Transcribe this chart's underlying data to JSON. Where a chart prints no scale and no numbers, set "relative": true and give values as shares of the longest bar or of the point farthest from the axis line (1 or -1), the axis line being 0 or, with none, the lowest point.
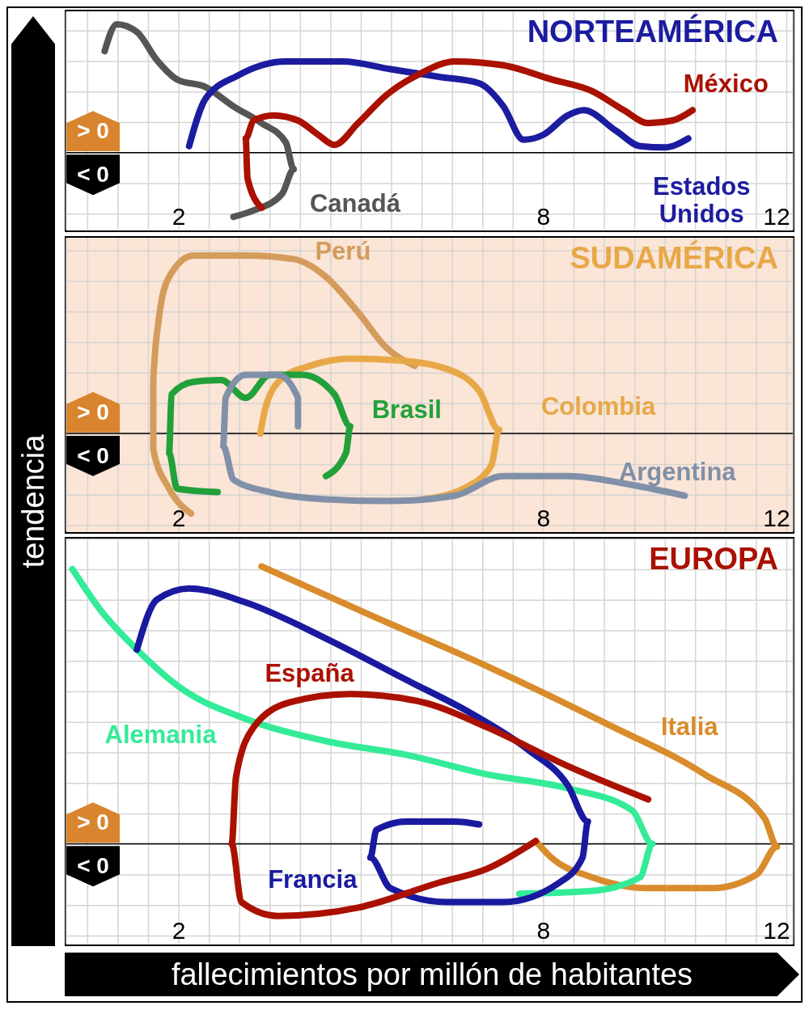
{
  "chart_data": [
    {
      "type": "line",
      "title": "NORTEAMÉRICA",
      "relative": true,
      "grid": true,
      "xlim": [
        0.15,
        12.1
      ],
      "xticks": [
        {
          "value": 0.5,
          "label": null
        },
        {
          "value": 1,
          "label": null
        },
        {
          "value": 1.5,
          "label": null
        },
        2,
        {
          "value": 2.5,
          "label": null
        },
        {
          "value": 3,
          "label": null
        },
        {
          "value": 3.5,
          "label": null
        },
        {
          "value": 4,
          "label": null
        },
        {
          "value": 4.5,
          "label": null
        },
        {
          "value": 5,
          "label": null
        },
        {
          "value": 5.5,
          "label": null
        },
        {
          "value": 6,
          "label": null
        },
        {
          "value": 6.5,
          "label": null
        },
        {
          "value": 7,
          "label": null
        },
        {
          "value": 7.5,
          "label": null
        },
        8,
        {
          "value": 8.5,
          "label": null
        },
        {
          "value": 9,
          "label": null
        },
        {
          "value": 9.5,
          "label": null
        },
        {
          "value": 10,
          "label": null
        },
        {
          "value": 10.5,
          "label": null
        },
        {
          "value": 11,
          "label": null
        },
        {
          "value": 11.5,
          "label": null
        },
        12
      ],
      "annotations": [
        "> 0",
        "< 0"
      ],
      "series": [
        {
          "name": "Canadá",
          "color": "#555555",
          "x": [
            0.78,
            0.98,
            1.31,
            1.64,
            1.97,
            2.44,
            2.9,
            3.36,
            3.76,
            3.89,
            3.7,
            3.23,
            2.9
          ],
          "values": [
            0.79,
            1.0,
            0.94,
            0.72,
            0.57,
            0.51,
            0.36,
            0.23,
            0.08,
            -0.13,
            -0.32,
            -0.45,
            -0.5
          ]
        },
        {
          "name": "Estados Unidos",
          "color": "#1c1ca0",
          "x": [
            2.17,
            2.44,
            2.97,
            3.76,
            4.69,
            5.48,
            6.28,
            6.94,
            7.34,
            7.67,
            8.0,
            8.4,
            8.66,
            9.19,
            9.59,
            9.99,
            10.38
          ],
          "values": [
            0.05,
            0.42,
            0.6,
            0.71,
            0.71,
            0.65,
            0.59,
            0.54,
            0.36,
            0.1,
            0.14,
            0.29,
            0.33,
            0.17,
            0.05,
            0.04,
            0.11
          ]
        },
        {
          "name": "México",
          "color": "#aa1100",
          "x": [
            3.36,
            3.13,
            3.1,
            3.23,
            3.56,
            3.96,
            4.29,
            4.56,
            4.95,
            5.42,
            5.95,
            6.54,
            7.34,
            8.13,
            8.79,
            9.32,
            9.72,
            10.12,
            10.45
          ],
          "values": [
            -0.43,
            -0.2,
            0.11,
            0.25,
            0.29,
            0.25,
            0.14,
            0.06,
            0.23,
            0.45,
            0.61,
            0.71,
            0.68,
            0.57,
            0.48,
            0.33,
            0.23,
            0.25,
            0.33
          ]
        }
      ]
    },
    {
      "type": "line",
      "title": "SUDAMÉRICA",
      "relative": true,
      "grid": true,
      "xlim": [
        0.15,
        12.1
      ],
      "xticks": [
        {
          "value": 0.5,
          "label": null
        },
        {
          "value": 1,
          "label": null
        },
        {
          "value": 1.5,
          "label": null
        },
        2,
        {
          "value": 2.5,
          "label": null
        },
        {
          "value": 3,
          "label": null
        },
        {
          "value": 3.5,
          "label": null
        },
        {
          "value": 4,
          "label": null
        },
        {
          "value": 4.5,
          "label": null
        },
        {
          "value": 5,
          "label": null
        },
        {
          "value": 5.5,
          "label": null
        },
        {
          "value": 6,
          "label": null
        },
        {
          "value": 6.5,
          "label": null
        },
        {
          "value": 7,
          "label": null
        },
        {
          "value": 7.5,
          "label": null
        },
        8,
        {
          "value": 8.5,
          "label": null
        },
        {
          "value": 9,
          "label": null
        },
        {
          "value": 9.5,
          "label": null
        },
        {
          "value": 10,
          "label": null
        },
        {
          "value": 10.5,
          "label": null
        },
        {
          "value": 11,
          "label": null
        },
        {
          "value": 11.5,
          "label": null
        },
        12
      ],
      "annotations": [
        "> 0",
        "< 0"
      ],
      "series": [
        {
          "name": "Perú",
          "color": "#d49c5c",
          "x": [
            2.2,
            1.84,
            1.58,
            1.58,
            1.67,
            1.84,
            2.24,
            3.1,
            3.89,
            4.42,
            4.95,
            5.42,
            5.88
          ],
          "values": [
            -0.45,
            -0.31,
            -0.09,
            0.29,
            0.64,
            0.88,
            1.0,
            1.0,
            0.98,
            0.88,
            0.68,
            0.48,
            0.38
          ]
        },
        {
          "name": "Colombia",
          "color": "#e8a848",
          "x": [
            3.34,
            3.43,
            3.7,
            4.16,
            4.82,
            5.62,
            6.34,
            6.94,
            7.27,
            7.14,
            6.68,
            6.01
          ],
          "values": [
            0.0,
            0.15,
            0.31,
            0.38,
            0.42,
            0.41,
            0.37,
            0.24,
            0.02,
            -0.18,
            -0.31,
            -0.37
          ]
        },
        {
          "name": "Brasil",
          "color": "#22a03a",
          "x": [
            2.64,
            1.97,
            1.84,
            1.88,
            2.24,
            2.7,
            3.1,
            3.5,
            4.03,
            4.56,
            4.82,
            4.75,
            4.42
          ],
          "values": [
            -0.33,
            -0.31,
            -0.11,
            0.22,
            0.29,
            0.3,
            0.2,
            0.33,
            0.33,
            0.22,
            0.04,
            -0.11,
            -0.24
          ]
        },
        {
          "name": "Argentina",
          "color": "#8090a8",
          "x": [
            10.32,
            9.46,
            8.4,
            7.34,
            6.54,
            5.48,
            4.42,
            3.5,
            2.9,
            2.73,
            2.77,
            3.1,
            3.63,
            3.96,
            3.96
          ],
          "values": [
            -0.35,
            -0.29,
            -0.24,
            -0.24,
            -0.35,
            -0.38,
            -0.37,
            -0.33,
            -0.26,
            -0.07,
            0.2,
            0.33,
            0.33,
            0.2,
            0.04
          ]
        }
      ]
    },
    {
      "type": "line",
      "title": "EUROPA",
      "relative": true,
      "grid": true,
      "xlim": [
        0.15,
        12.1
      ],
      "xlabel": "fallecimientos por millón de habitantes",
      "ylabel": "tendencia",
      "xticks": [
        {
          "value": 0.5,
          "label": null
        },
        {
          "value": 1,
          "label": null
        },
        {
          "value": 1.5,
          "label": null
        },
        2,
        {
          "value": 2.5,
          "label": null
        },
        {
          "value": 3,
          "label": null
        },
        {
          "value": 3.5,
          "label": null
        },
        {
          "value": 4,
          "label": null
        },
        {
          "value": 4.5,
          "label": null
        },
        {
          "value": 5,
          "label": null
        },
        {
          "value": 5.5,
          "label": null
        },
        {
          "value": 6,
          "label": null
        },
        {
          "value": 6.5,
          "label": null
        },
        {
          "value": 7,
          "label": null
        },
        {
          "value": 7.5,
          "label": null
        },
        8,
        {
          "value": 8.5,
          "label": null
        },
        {
          "value": 9,
          "label": null
        },
        {
          "value": 9.5,
          "label": null
        },
        {
          "value": 10,
          "label": null
        },
        {
          "value": 10.5,
          "label": null
        },
        {
          "value": 11,
          "label": null
        },
        {
          "value": 11.5,
          "label": null
        },
        12
      ],
      "annotations": [
        "> 0",
        "< 0"
      ],
      "series": [
        {
          "name": "Italia",
          "color": "#d98c2c",
          "x": [
            3.36,
            5.09,
            7.07,
            9.06,
            10.65,
            11.64,
            11.84,
            11.51,
            10.78,
            9.72,
            8.79,
            8.13,
            7.87
          ],
          "values": [
            1.0,
            0.83,
            0.64,
            0.43,
            0.25,
            0.09,
            -0.01,
            -0.11,
            -0.16,
            -0.16,
            -0.12,
            -0.05,
            0.01
          ]
        },
        {
          "name": "Alemania",
          "color": "#34eb98",
          "x": [
            0.25,
            0.72,
            1.31,
            2.04,
            3.1,
            4.42,
            5.75,
            7.07,
            8.4,
            9.46,
            9.79,
            9.59,
            8.79,
            7.6
          ],
          "values": [
            0.99,
            0.84,
            0.7,
            0.56,
            0.45,
            0.37,
            0.32,
            0.25,
            0.2,
            0.12,
            0.0,
            -0.12,
            -0.17,
            -0.18
          ]
        },
        {
          "name": "Francia",
          "color": "#1a1aa0",
          "x": [
            1.31,
            1.64,
            2.17,
            3.1,
            4.42,
            5.75,
            6.81,
            7.74,
            8.4,
            8.73,
            8.64,
            8.26,
            7.34,
            6.41,
            5.48,
            5.15,
            5.25,
            5.75,
            6.54,
            6.94
          ],
          "values": [
            0.7,
            0.88,
            0.92,
            0.87,
            0.74,
            0.59,
            0.47,
            0.34,
            0.21,
            0.08,
            -0.05,
            -0.14,
            -0.21,
            -0.21,
            -0.16,
            -0.05,
            0.05,
            0.08,
            0.08,
            0.07
          ]
        },
        {
          "name": "España",
          "color": "#aa1100",
          "x": [
            7.87,
            7.07,
            6.28,
            4.95,
            3.63,
            3.03,
            2.87,
            2.94,
            3.23,
            3.83,
            4.82,
            6.01,
            7.07,
            8.4,
            9.72
          ],
          "values": [
            0.01,
            -0.09,
            -0.14,
            -0.23,
            -0.26,
            -0.21,
            0.0,
            0.24,
            0.42,
            0.51,
            0.54,
            0.51,
            0.42,
            0.28,
            0.16
          ]
        }
      ]
    }
  ]
}
